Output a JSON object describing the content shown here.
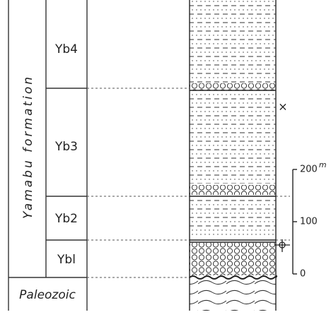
{
  "formation": "Yamabu formation",
  "units": [
    "Yb4",
    "Yb3",
    "Yb2",
    "Ybl"
  ],
  "basement": "Paleozoic",
  "scale": {
    "unit": "m",
    "ticks": [
      0,
      100,
      200
    ]
  }
}
